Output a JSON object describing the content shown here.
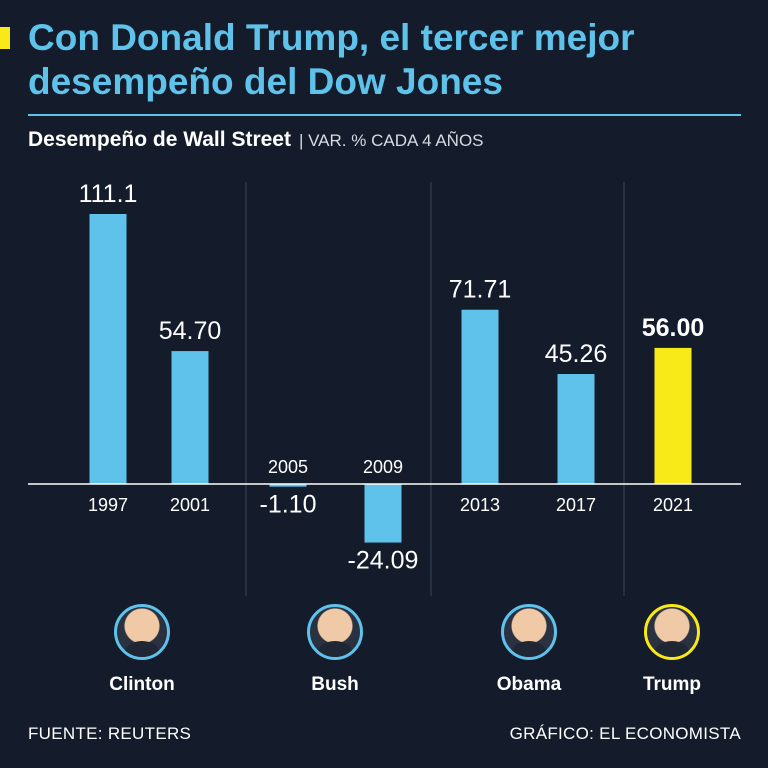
{
  "header": {
    "title": "Con Donald Trump, el tercer mejor desempeño del Dow Jones",
    "subtitle_bold": "Desempeño de Wall Street",
    "subtitle_light": "| VAR. % CADA 4 AÑOS"
  },
  "colors": {
    "background": "#141c2b",
    "bar": "#5ec2ea",
    "highlight": "#f8ea18",
    "title": "#5ec2ea",
    "text": "#ffffff"
  },
  "chart_data": {
    "type": "bar",
    "title": "Desempeño de Wall Street",
    "ylabel": "VAR. % CADA 4 AÑOS",
    "categories": [
      "1997",
      "2001",
      "2005",
      "2009",
      "2013",
      "2017",
      "2021"
    ],
    "values": [
      111.1,
      54.7,
      -1.1,
      -24.09,
      71.71,
      45.26,
      56.0
    ],
    "labels": [
      "111.1",
      "54.70",
      "-1.10",
      "-24.09",
      "71.71",
      "45.26",
      "56.00"
    ],
    "highlight_index": 6,
    "ylim": [
      -40,
      125
    ],
    "groups": [
      {
        "name": "Clinton",
        "years": [
          "1997",
          "2001"
        ]
      },
      {
        "name": "Bush",
        "years": [
          "2005",
          "2009"
        ]
      },
      {
        "name": "Obama",
        "years": [
          "2013",
          "2017"
        ]
      },
      {
        "name": "Trump",
        "years": [
          "2021"
        ]
      }
    ]
  },
  "presidents": [
    {
      "name": "Clinton",
      "icon": "clinton-portrait-icon"
    },
    {
      "name": "Bush",
      "icon": "bush-portrait-icon"
    },
    {
      "name": "Obama",
      "icon": "obama-portrait-icon"
    },
    {
      "name": "Trump",
      "icon": "trump-portrait-icon"
    }
  ],
  "footer": {
    "source": "FUENTE: REUTERS",
    "credit": "GRÁFICO: EL ECONOMISTA"
  }
}
